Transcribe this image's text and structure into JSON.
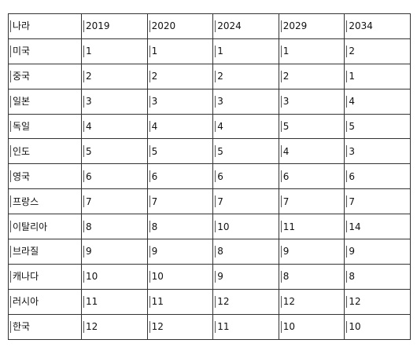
{
  "table": {
    "headers": [
      "나라",
      "2019",
      "2020",
      "2024",
      "2029",
      "2034"
    ],
    "rows": [
      [
        "미국",
        "1",
        "1",
        "1",
        "1",
        "2"
      ],
      [
        "중국",
        "2",
        "2",
        "2",
        "2",
        "1"
      ],
      [
        "일본",
        "3",
        "3",
        "3",
        "3",
        "4"
      ],
      [
        "독일",
        "4",
        "4",
        "4",
        "5",
        "5"
      ],
      [
        "인도",
        "5",
        "5",
        "5",
        "4",
        "3"
      ],
      [
        "영국",
        "6",
        "6",
        "6",
        "6",
        "6"
      ],
      [
        "프랑스",
        "7",
        "7",
        "7",
        "7",
        "7"
      ],
      [
        "이탈리아",
        "8",
        "8",
        "10",
        "11",
        "14"
      ],
      [
        "브라질",
        "9",
        "9",
        "8",
        "9",
        "9"
      ],
      [
        "캐나다",
        "10",
        "10",
        "9",
        "8",
        "8"
      ],
      [
        "러시아",
        "11",
        "11",
        "12",
        "12",
        "12"
      ],
      [
        "한국",
        "12",
        "12",
        "11",
        "10",
        "10"
      ]
    ]
  }
}
